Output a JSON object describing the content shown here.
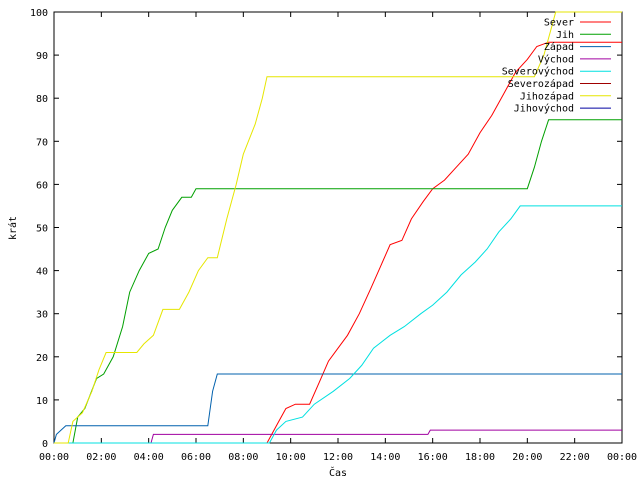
{
  "chart_data": {
    "type": "line",
    "title": "",
    "xlabel": "Čas",
    "ylabel": "krát",
    "xlim": [
      0,
      24
    ],
    "ylim": [
      0,
      100
    ],
    "xticks": [
      0,
      2,
      4,
      6,
      8,
      10,
      12,
      14,
      16,
      18,
      20,
      22,
      24
    ],
    "xtick_labels": [
      "00:00",
      "02:00",
      "04:00",
      "06:00",
      "08:00",
      "10:00",
      "12:00",
      "14:00",
      "16:00",
      "18:00",
      "20:00",
      "22:00",
      "00:00"
    ],
    "yticks": [
      0,
      10,
      20,
      30,
      40,
      50,
      60,
      70,
      80,
      90,
      100
    ],
    "grid": false,
    "legend_position": "top-right",
    "series": [
      {
        "name": "Sever",
        "color": "#ff0000",
        "points": [
          [
            0,
            0
          ],
          [
            9.0,
            0
          ],
          [
            9.2,
            2
          ],
          [
            9.5,
            5
          ],
          [
            9.8,
            8
          ],
          [
            10.2,
            9
          ],
          [
            10.8,
            9
          ],
          [
            11.2,
            14
          ],
          [
            11.6,
            19
          ],
          [
            12.0,
            22
          ],
          [
            12.4,
            25
          ],
          [
            12.9,
            30
          ],
          [
            13.4,
            36
          ],
          [
            13.8,
            41
          ],
          [
            14.2,
            46
          ],
          [
            14.7,
            47
          ],
          [
            15.1,
            52
          ],
          [
            15.6,
            56
          ],
          [
            16.0,
            59
          ],
          [
            16.5,
            61
          ],
          [
            17.0,
            64
          ],
          [
            17.5,
            67
          ],
          [
            18.0,
            72
          ],
          [
            18.5,
            76
          ],
          [
            19.0,
            81
          ],
          [
            19.5,
            86
          ],
          [
            20.0,
            89
          ],
          [
            20.4,
            92
          ],
          [
            20.9,
            93
          ],
          [
            24,
            93
          ]
        ]
      },
      {
        "name": "Jih",
        "color": "#00a000",
        "points": [
          [
            0,
            0
          ],
          [
            0.8,
            0
          ],
          [
            1.0,
            6
          ],
          [
            1.3,
            8
          ],
          [
            1.8,
            15
          ],
          [
            2.1,
            16
          ],
          [
            2.5,
            20
          ],
          [
            2.9,
            27
          ],
          [
            3.2,
            35
          ],
          [
            3.6,
            40
          ],
          [
            4.0,
            44
          ],
          [
            4.4,
            45
          ],
          [
            4.7,
            50
          ],
          [
            5.0,
            54
          ],
          [
            5.4,
            57
          ],
          [
            5.8,
            57
          ],
          [
            6.0,
            59
          ],
          [
            9.5,
            59
          ],
          [
            20.0,
            59
          ],
          [
            20.3,
            64
          ],
          [
            20.6,
            70
          ],
          [
            20.9,
            75
          ],
          [
            24,
            75
          ]
        ]
      },
      {
        "name": "Západ",
        "color": "#0060ad",
        "points": [
          [
            0,
            0
          ],
          [
            0.1,
            2
          ],
          [
            0.5,
            4
          ],
          [
            6.5,
            4
          ],
          [
            6.7,
            12
          ],
          [
            6.9,
            16
          ],
          [
            24,
            16
          ]
        ]
      },
      {
        "name": "Východ",
        "color": "#a000a0",
        "points": [
          [
            0,
            0
          ],
          [
            4.1,
            0
          ],
          [
            4.2,
            2
          ],
          [
            15.8,
            2
          ],
          [
            15.9,
            3
          ],
          [
            24,
            3
          ]
        ]
      },
      {
        "name": "Severovýchod",
        "color": "#00e0e0",
        "points": [
          [
            0,
            0
          ],
          [
            9.1,
            0
          ],
          [
            9.4,
            3
          ],
          [
            9.8,
            5
          ],
          [
            10.5,
            6
          ],
          [
            11.0,
            9
          ],
          [
            11.8,
            12
          ],
          [
            12.5,
            15
          ],
          [
            13.0,
            18
          ],
          [
            13.5,
            22
          ],
          [
            14.2,
            25
          ],
          [
            14.8,
            27
          ],
          [
            15.5,
            30
          ],
          [
            16.0,
            32
          ],
          [
            16.6,
            35
          ],
          [
            17.2,
            39
          ],
          [
            17.8,
            42
          ],
          [
            18.3,
            45
          ],
          [
            18.8,
            49
          ],
          [
            19.3,
            52
          ],
          [
            19.7,
            55
          ],
          [
            24,
            55
          ]
        ]
      },
      {
        "name": "Severozápad",
        "color": "#a00000",
        "points": []
      },
      {
        "name": "Jihozápad",
        "color": "#e6e600",
        "points": [
          [
            0,
            0
          ],
          [
            0.6,
            0
          ],
          [
            0.8,
            5
          ],
          [
            1.2,
            7
          ],
          [
            1.6,
            12
          ],
          [
            1.9,
            17
          ],
          [
            2.2,
            21
          ],
          [
            3.5,
            21
          ],
          [
            3.8,
            23
          ],
          [
            4.2,
            25
          ],
          [
            4.6,
            31
          ],
          [
            5.3,
            31
          ],
          [
            5.7,
            35
          ],
          [
            6.1,
            40
          ],
          [
            6.5,
            43
          ],
          [
            6.9,
            43
          ],
          [
            7.3,
            52
          ],
          [
            7.7,
            60
          ],
          [
            8.0,
            67
          ],
          [
            8.5,
            74
          ],
          [
            8.8,
            80
          ],
          [
            9.0,
            85
          ],
          [
            20.3,
            85
          ],
          [
            20.7,
            90
          ],
          [
            21.0,
            96
          ],
          [
            21.2,
            100
          ],
          [
            24,
            100
          ]
        ]
      },
      {
        "name": "Jihovýchod",
        "color": "#0000a0",
        "points": []
      }
    ]
  }
}
